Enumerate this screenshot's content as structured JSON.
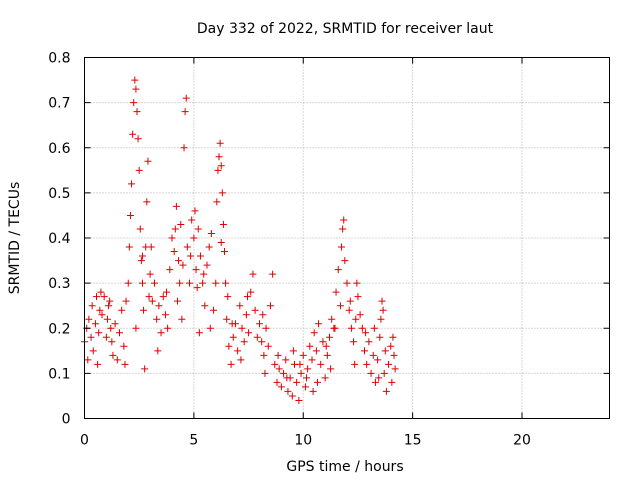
{
  "chart_data": {
    "type": "scatter",
    "title": "Day 332 of 2022, SRMTID for receiver laut",
    "xlabel": "GPS time / hours",
    "ylabel": "SRMTID / TECUs",
    "xlim": [
      0,
      24
    ],
    "ylim": [
      0,
      0.8
    ],
    "xticks": [
      "0",
      "5",
      "10",
      "15",
      "20"
    ],
    "yticks": [
      "0",
      "0.1",
      "0.2",
      "0.3",
      "0.4",
      "0.5",
      "0.6",
      "0.7",
      "0.8"
    ],
    "grid": true,
    "marker": "plus",
    "color": "#e00000",
    "points": [
      [
        0.0,
        0.17
      ],
      [
        0.1,
        0.2
      ],
      [
        0.15,
        0.13
      ],
      [
        0.2,
        0.22
      ],
      [
        0.3,
        0.18
      ],
      [
        0.35,
        0.25
      ],
      [
        0.4,
        0.15
      ],
      [
        0.5,
        0.21
      ],
      [
        0.6,
        0.12
      ],
      [
        0.65,
        0.19
      ],
      [
        0.7,
        0.24
      ],
      [
        0.75,
        0.28
      ],
      [
        0.8,
        0.23
      ],
      [
        0.9,
        0.27
      ],
      [
        1.0,
        0.18
      ],
      [
        1.05,
        0.22
      ],
      [
        1.1,
        0.25
      ],
      [
        1.2,
        0.2
      ],
      [
        1.25,
        0.17
      ],
      [
        1.3,
        0.14
      ],
      [
        1.4,
        0.21
      ],
      [
        1.5,
        0.13
      ],
      [
        1.6,
        0.19
      ],
      [
        1.7,
        0.24
      ],
      [
        1.8,
        0.16
      ],
      [
        1.9,
        0.26
      ],
      [
        2.0,
        0.3
      ],
      [
        2.05,
        0.38
      ],
      [
        2.1,
        0.45
      ],
      [
        2.15,
        0.52
      ],
      [
        2.2,
        0.63
      ],
      [
        2.25,
        0.7
      ],
      [
        2.3,
        0.75
      ],
      [
        2.35,
        0.73
      ],
      [
        2.4,
        0.68
      ],
      [
        2.45,
        0.62
      ],
      [
        2.5,
        0.55
      ],
      [
        2.55,
        0.42
      ],
      [
        2.6,
        0.35
      ],
      [
        2.65,
        0.3
      ],
      [
        2.7,
        0.24
      ],
      [
        2.75,
        0.11
      ],
      [
        2.8,
        0.38
      ],
      [
        2.85,
        0.48
      ],
      [
        2.9,
        0.57
      ],
      [
        2.95,
        0.27
      ],
      [
        3.0,
        0.32
      ],
      [
        3.1,
        0.26
      ],
      [
        3.2,
        0.3
      ],
      [
        3.3,
        0.22
      ],
      [
        3.4,
        0.25
      ],
      [
        3.5,
        0.19
      ],
      [
        3.6,
        0.27
      ],
      [
        3.7,
        0.23
      ],
      [
        3.8,
        0.2
      ],
      [
        3.9,
        0.33
      ],
      [
        4.0,
        0.4
      ],
      [
        4.1,
        0.37
      ],
      [
        4.15,
        0.42
      ],
      [
        4.2,
        0.47
      ],
      [
        4.3,
        0.35
      ],
      [
        4.35,
        0.3
      ],
      [
        4.4,
        0.43
      ],
      [
        4.5,
        0.34
      ],
      [
        4.55,
        0.6
      ],
      [
        4.6,
        0.68
      ],
      [
        4.65,
        0.71
      ],
      [
        4.7,
        0.38
      ],
      [
        4.8,
        0.3
      ],
      [
        4.9,
        0.44
      ],
      [
        5.0,
        0.4
      ],
      [
        5.05,
        0.46
      ],
      [
        5.1,
        0.33
      ],
      [
        5.2,
        0.42
      ],
      [
        5.3,
        0.36
      ],
      [
        5.4,
        0.3
      ],
      [
        5.5,
        0.25
      ],
      [
        5.6,
        0.34
      ],
      [
        5.7,
        0.38
      ],
      [
        5.8,
        0.41
      ],
      [
        5.9,
        0.24
      ],
      [
        6.0,
        0.3
      ],
      [
        6.05,
        0.48
      ],
      [
        6.1,
        0.55
      ],
      [
        6.15,
        0.58
      ],
      [
        6.2,
        0.61
      ],
      [
        6.25,
        0.56
      ],
      [
        6.3,
        0.5
      ],
      [
        6.35,
        0.43
      ],
      [
        6.4,
        0.37
      ],
      [
        6.45,
        0.3
      ],
      [
        6.5,
        0.22
      ],
      [
        6.6,
        0.16
      ],
      [
        6.7,
        0.12
      ],
      [
        6.8,
        0.18
      ],
      [
        6.9,
        0.21
      ],
      [
        7.0,
        0.15
      ],
      [
        7.1,
        0.25
      ],
      [
        7.2,
        0.2
      ],
      [
        7.3,
        0.17
      ],
      [
        7.4,
        0.23
      ],
      [
        7.5,
        0.19
      ],
      [
        7.6,
        0.28
      ],
      [
        7.7,
        0.32
      ],
      [
        7.8,
        0.24
      ],
      [
        7.9,
        0.18
      ],
      [
        8.0,
        0.21
      ],
      [
        8.1,
        0.17
      ],
      [
        8.2,
        0.14
      ],
      [
        8.3,
        0.2
      ],
      [
        8.4,
        0.16
      ],
      [
        8.5,
        0.25
      ],
      [
        8.6,
        0.32
      ],
      [
        8.7,
        0.12
      ],
      [
        8.8,
        0.08
      ],
      [
        8.9,
        0.11
      ],
      [
        9.0,
        0.07
      ],
      [
        9.1,
        0.1
      ],
      [
        9.2,
        0.13
      ],
      [
        9.3,
        0.06
      ],
      [
        9.4,
        0.09
      ],
      [
        9.5,
        0.05
      ],
      [
        9.6,
        0.12
      ],
      [
        9.7,
        0.08
      ],
      [
        9.8,
        0.04
      ],
      [
        9.9,
        0.1
      ],
      [
        10.0,
        0.14
      ],
      [
        10.1,
        0.07
      ],
      [
        10.2,
        0.11
      ],
      [
        10.3,
        0.16
      ],
      [
        10.4,
        0.13
      ],
      [
        10.5,
        0.19
      ],
      [
        10.6,
        0.15
      ],
      [
        10.7,
        0.21
      ],
      [
        10.8,
        0.12
      ],
      [
        10.9,
        0.17
      ],
      [
        11.0,
        0.09
      ],
      [
        11.1,
        0.14
      ],
      [
        11.2,
        0.18
      ],
      [
        11.3,
        0.22
      ],
      [
        11.4,
        0.2
      ],
      [
        11.5,
        0.28
      ],
      [
        11.6,
        0.33
      ],
      [
        11.7,
        0.25
      ],
      [
        11.75,
        0.38
      ],
      [
        11.8,
        0.42
      ],
      [
        11.85,
        0.44
      ],
      [
        11.9,
        0.35
      ],
      [
        12.0,
        0.3
      ],
      [
        12.1,
        0.24
      ],
      [
        12.2,
        0.2
      ],
      [
        12.3,
        0.17
      ],
      [
        12.4,
        0.22
      ],
      [
        12.5,
        0.27
      ],
      [
        12.6,
        0.23
      ],
      [
        12.7,
        0.2
      ],
      [
        12.8,
        0.15
      ],
      [
        12.9,
        0.12
      ],
      [
        13.0,
        0.17
      ],
      [
        13.1,
        0.1
      ],
      [
        13.2,
        0.14
      ],
      [
        13.3,
        0.08
      ],
      [
        13.4,
        0.13
      ],
      [
        13.5,
        0.18
      ],
      [
        13.55,
        0.22
      ],
      [
        13.6,
        0.26
      ],
      [
        13.65,
        0.24
      ],
      [
        13.7,
        0.1
      ],
      [
        13.8,
        0.06
      ],
      [
        13.9,
        0.12
      ],
      [
        14.0,
        0.16
      ],
      [
        14.1,
        0.18
      ],
      [
        14.15,
        0.14
      ],
      [
        14.2,
        0.11
      ],
      [
        1.85,
        0.12
      ],
      [
        3.35,
        0.15
      ],
      [
        4.45,
        0.22
      ],
      [
        5.25,
        0.19
      ],
      [
        6.55,
        0.27
      ],
      [
        7.15,
        0.13
      ],
      [
        8.25,
        0.1
      ],
      [
        9.55,
        0.15
      ],
      [
        10.45,
        0.06
      ],
      [
        11.25,
        0.11
      ],
      [
        12.35,
        0.12
      ],
      [
        13.25,
        0.2
      ],
      [
        0.55,
        0.27
      ],
      [
        1.15,
        0.26
      ],
      [
        2.35,
        0.2
      ],
      [
        2.65,
        0.36
      ],
      [
        3.05,
        0.38
      ],
      [
        3.75,
        0.28
      ],
      [
        4.25,
        0.26
      ],
      [
        4.85,
        0.36
      ],
      [
        5.15,
        0.29
      ],
      [
        5.45,
        0.32
      ],
      [
        5.75,
        0.2
      ],
      [
        6.25,
        0.39
      ],
      [
        6.75,
        0.21
      ],
      [
        7.45,
        0.27
      ],
      [
        8.15,
        0.23
      ],
      [
        8.85,
        0.14
      ],
      [
        9.25,
        0.09
      ],
      [
        9.85,
        0.12
      ],
      [
        10.15,
        0.09
      ],
      [
        10.65,
        0.08
      ],
      [
        11.05,
        0.16
      ],
      [
        11.45,
        0.2
      ],
      [
        12.15,
        0.26
      ],
      [
        12.45,
        0.3
      ],
      [
        12.85,
        0.19
      ],
      [
        13.45,
        0.09
      ],
      [
        13.75,
        0.15
      ],
      [
        14.05,
        0.08
      ]
    ]
  }
}
